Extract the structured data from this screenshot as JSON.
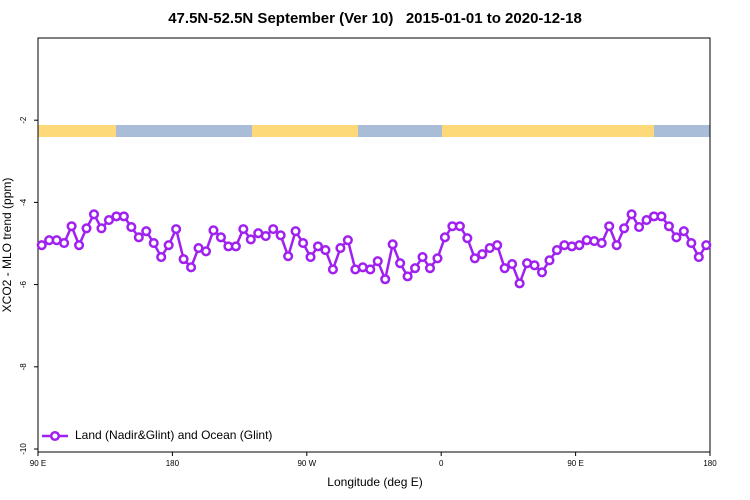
{
  "chart_data": {
    "type": "line",
    "title": "47.5N-52.5N September (Ver 10)   2015-01-01 to 2020-12-18",
    "x_label": "Longitude (deg E)",
    "y_label": "XCO2 - MLO trend (ppm)",
    "xlim": [
      90,
      540
    ],
    "ylim": [
      -10,
      0
    ],
    "xticks": [
      {
        "value": 90,
        "label": "90 E"
      },
      180,
      {
        "value": 270,
        "label": "90 W"
      },
      {
        "value": 360,
        "label": "0"
      },
      {
        "value": 450,
        "label": "90 E"
      },
      {
        "value": 540,
        "label": "180"
      }
    ],
    "yticks": [
      -10,
      -8,
      -6,
      -4,
      -2
    ],
    "legend": "bottom-left",
    "x": [
      92.5,
      97.5,
      102.5,
      107.5,
      112.5,
      117.5,
      122.5,
      127.5,
      132.5,
      137.5,
      142.5,
      147.5,
      152.5,
      157.5,
      162.5,
      167.5,
      172.5,
      177.5,
      182.5,
      187.5,
      192.5,
      197.5,
      202.5,
      207.5,
      212.5,
      217.5,
      222.5,
      227.5,
      232.5,
      237.5,
      242.5,
      247.5,
      252.5,
      257.5,
      262.5,
      267.5,
      272.5,
      277.5,
      282.5,
      287.5,
      292.5,
      297.5,
      302.5,
      307.5,
      312.5,
      317.5,
      322.5,
      327.5,
      332.5,
      337.5,
      342.5,
      347.5,
      352.5,
      357.5,
      362.5,
      367.5,
      372.5,
      377.5,
      382.5,
      387.5,
      392.5,
      397.5,
      402.5,
      407.5,
      412.5,
      417.5,
      422.5,
      427.5,
      432.5,
      437.5,
      442.5,
      447.5,
      452.5,
      457.5,
      462.5,
      467.5,
      472.5,
      477.5,
      482.5,
      487.5,
      492.5,
      497.5,
      502.5,
      507.5,
      512.5,
      517.5,
      522.5,
      527.5,
      532.5,
      537.5
    ],
    "series": [
      {
        "name": "Land (Nadir&Glint) and Ocean (Glint)",
        "color": "#a020f0",
        "values": [
          -5.04,
          -4.92,
          -4.92,
          -4.99,
          -4.58,
          -5.04,
          -4.63,
          -4.29,
          -4.63,
          -4.43,
          -4.34,
          -4.34,
          -4.6,
          -4.85,
          -4.7,
          -4.99,
          -5.33,
          -5.04,
          -4.65,
          -5.38,
          -5.58,
          -5.11,
          -5.19,
          -4.68,
          -4.85,
          -5.07,
          -5.07,
          -4.65,
          -4.9,
          -4.75,
          -4.82,
          -4.65,
          -4.8,
          -5.31,
          -4.7,
          -4.99,
          -5.33,
          -5.07,
          -5.16,
          -5.63,
          -5.11,
          -4.92,
          -5.63,
          -5.58,
          -5.63,
          -5.43,
          -5.87,
          -5.02,
          -5.48,
          -5.8,
          -5.6,
          -5.33,
          -5.6,
          -5.36,
          -4.85,
          -4.58,
          -4.58,
          -4.87,
          -5.36,
          -5.26,
          -5.11,
          -5.04,
          -5.6,
          -5.5,
          -5.97,
          -5.48,
          -5.53,
          -5.7,
          -5.41,
          -5.16,
          -5.04,
          -5.07,
          -5.04,
          -4.92,
          -4.94,
          -4.99,
          -4.58,
          -5.04,
          -4.63,
          -4.29,
          -4.6,
          -4.43,
          -4.34,
          -4.34,
          -4.58,
          -4.85,
          -4.7,
          -4.99,
          -5.33,
          -5.04
        ]
      }
    ]
  }
}
